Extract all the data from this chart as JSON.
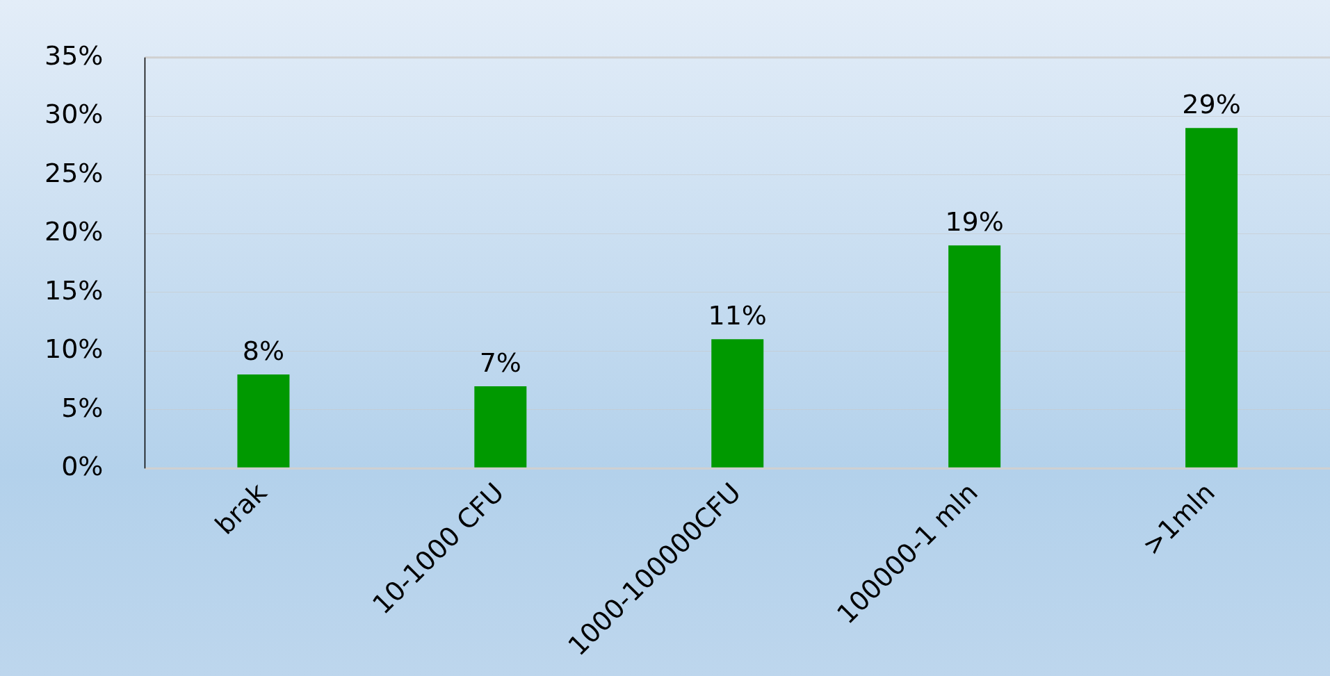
{
  "chart_data": {
    "type": "bar",
    "categories": [
      "brak",
      "10-1000 CFU",
      "1000-100000CFU",
      "100000-1 mln",
      ">1mln"
    ],
    "values": [
      8,
      7,
      11,
      19,
      29
    ],
    "color": "#009900",
    "value_labels": [
      "8%",
      "7%",
      "11%",
      "19%",
      "29%"
    ],
    "ylim": [
      0,
      35
    ],
    "yticks": [
      {
        "value": 0,
        "label": "0%"
      },
      {
        "value": 5,
        "label": "5%"
      },
      {
        "value": 10,
        "label": "10%"
      },
      {
        "value": 15,
        "label": "15%"
      },
      {
        "value": 20,
        "label": "20%"
      },
      {
        "value": 25,
        "label": "25%"
      },
      {
        "value": 30,
        "label": "30%"
      },
      {
        "value": 35,
        "label": "35%"
      }
    ],
    "grid": "y",
    "legend": false
  }
}
